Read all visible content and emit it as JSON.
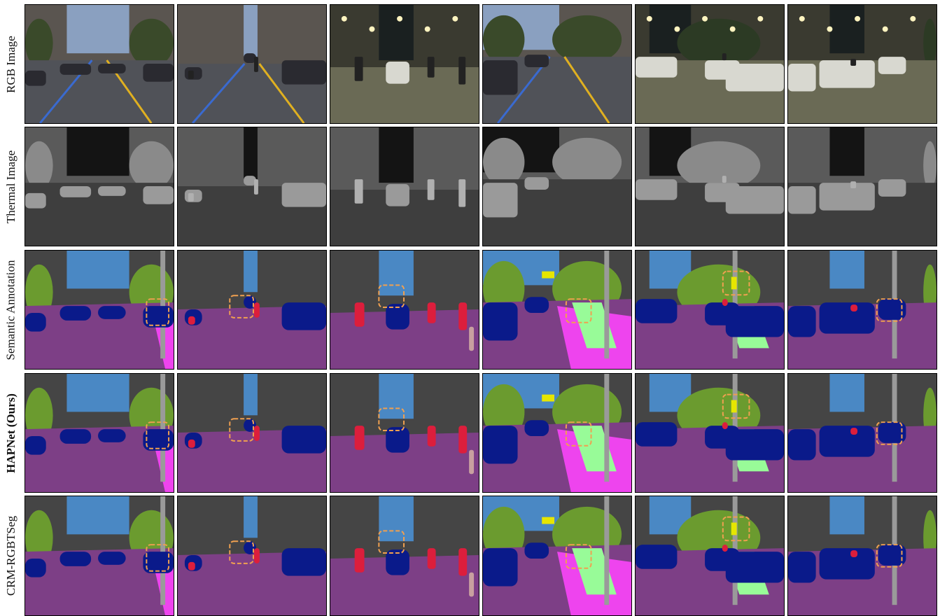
{
  "rows": [
    {
      "label": "RGB Image",
      "bold": false,
      "kind": "rgb"
    },
    {
      "label": "Thermal Image",
      "bold": false,
      "kind": "thermal"
    },
    {
      "label": "Semantic Annotation",
      "bold": false,
      "kind": "seg_gt"
    },
    {
      "label": "HAPNet (Ours)",
      "bold": true,
      "kind": "seg_hap"
    },
    {
      "label": "CRM-RGBTSeg",
      "bold": false,
      "kind": "seg_crm"
    }
  ],
  "columns": 6,
  "highlight_color": "#f0a050",
  "palette": {
    "sky": "#4a88c4",
    "building": "#454545",
    "vegetation": "#6b9b2f",
    "road": "#7d3f86",
    "car": "#0a1a8a",
    "person": "#dc1e3c",
    "sidewalk": "#ee44ee",
    "pole": "#9a9a9a",
    "terrain": "#98fb98",
    "sign": "#e6e600",
    "rider": "#c8a0a0"
  }
}
